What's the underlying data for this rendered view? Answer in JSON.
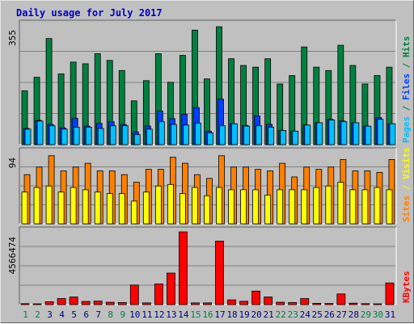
{
  "chart_data": {
    "type": "bar",
    "title": "Daily usage for July 2017",
    "x": [
      "1",
      "2",
      "3",
      "4",
      "5",
      "6",
      "7",
      "8",
      "9",
      "10",
      "11",
      "12",
      "13",
      "14",
      "15",
      "16",
      "17",
      "18",
      "19",
      "20",
      "21",
      "22",
      "23",
      "24",
      "25",
      "26",
      "27",
      "28",
      "29",
      "30",
      "31"
    ],
    "weekend_days": [
      "1",
      "2",
      "8",
      "9",
      "15",
      "16",
      "22",
      "23",
      "29",
      "30"
    ],
    "panels": [
      {
        "name": "hits-files-pages",
        "max_label": "355",
        "ylim": [
          0,
          355
        ],
        "series": [
          {
            "name": "Hits",
            "color": "#008040",
            "values": [
              160,
              200,
              315,
              210,
              245,
              240,
              270,
              250,
              220,
              130,
              190,
              270,
              185,
              265,
              340,
              195,
              350,
              255,
              235,
              230,
              255,
              180,
              205,
              290,
              230,
              220,
              295,
              235,
              180,
              205,
              230
            ]
          },
          {
            "name": "Files",
            "color": "#0040ff",
            "values": [
              48,
              72,
              60,
              50,
              78,
              55,
              63,
              68,
              60,
              38,
              55,
              100,
              77,
              90,
              110,
              40,
              135,
              62,
              57,
              85,
              60,
              42,
              40,
              58,
              65,
              75,
              70,
              65,
              55,
              80,
              62
            ]
          },
          {
            "name": "Pages",
            "color": "#00c0ff",
            "values": [
              46,
              70,
              56,
              46,
              52,
              52,
              48,
              56,
              56,
              30,
              46,
              68,
              60,
              58,
              64,
              35,
              56,
              62,
              55,
              56,
              52,
              42,
              40,
              58,
              65,
              73,
              68,
              65,
              55,
              75,
              62
            ]
          }
        ],
        "side_labels": [
          {
            "text": "Pages",
            "color": "#00c0ff"
          },
          {
            "text": " / ",
            "color": "#008040"
          },
          {
            "text": "Files",
            "color": "#0040ff"
          },
          {
            "text": " / ",
            "color": "#008040"
          },
          {
            "text": "Hits",
            "color": "#008040"
          }
        ]
      },
      {
        "name": "visits-sites",
        "max_label": "94",
        "ylim": [
          0,
          94
        ],
        "series": [
          {
            "name": "Visits",
            "color": "#ff8000",
            "values": [
              65,
              75,
              90,
              70,
              75,
              80,
              70,
              70,
              65,
              55,
              72,
              72,
              88,
              80,
              65,
              60,
              90,
              75,
              75,
              72,
              70,
              80,
              62,
              75,
              72,
              75,
              85,
              70,
              70,
              68,
              85
            ]
          },
          {
            "name": "Sites",
            "color": "#ffff00",
            "values": [
              42,
              48,
              50,
              42,
              48,
              45,
              42,
              40,
              40,
              30,
              42,
              50,
              52,
              40,
              48,
              37,
              48,
              45,
              45,
              45,
              38,
              45,
              45,
              45,
              48,
              50,
              55,
              45,
              45,
              48,
              45
            ]
          }
        ],
        "side_labels": [
          {
            "text": "Sites",
            "color": "#ff8000"
          },
          {
            "text": " / ",
            "color": "#ffff00"
          },
          {
            "text": "Visits",
            "color": "#ffff00"
          }
        ]
      },
      {
        "name": "kbytes",
        "max_label": "4566474",
        "ylim": [
          0,
          4566474
        ],
        "series": [
          {
            "name": "KBytes",
            "color": "#ff0000",
            "values": [
              60000,
              50000,
              180000,
              380000,
              480000,
              200000,
              220000,
              150000,
              130000,
              1230000,
              110000,
              1300000,
              1980000,
              4566474,
              110000,
              110000,
              3990000,
              300000,
              210000,
              850000,
              480000,
              150000,
              130000,
              380000,
              80000,
              70000,
              670000,
              90000,
              60000,
              50000,
              1360000
            ]
          }
        ],
        "side_labels": [
          {
            "text": "KBytes",
            "color": "#ff0000"
          }
        ]
      }
    ],
    "grid": true,
    "legend": "right"
  }
}
